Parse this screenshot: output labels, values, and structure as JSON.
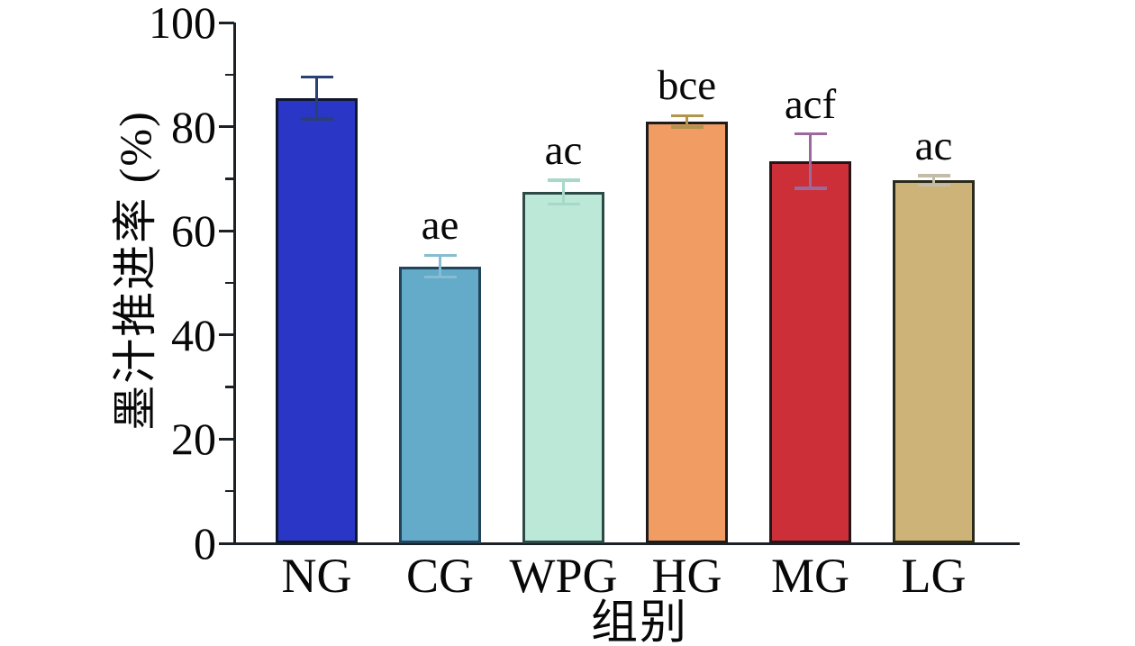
{
  "figure": {
    "background": "#ffffff",
    "axis_color": "#1c2126"
  },
  "chart_data": {
    "type": "bar",
    "title": "",
    "xlabel": "组别",
    "ylabel": "墨汁推进率 (%)",
    "ylim": [
      0,
      100
    ],
    "yticks_major": [
      0,
      20,
      40,
      60,
      80,
      100
    ],
    "yticks_minor": [
      10,
      30,
      50,
      70,
      90
    ],
    "grid": false,
    "legend": null,
    "categories": [
      "NG",
      "CG",
      "WPG",
      "HG",
      "MG",
      "LG"
    ],
    "values": [
      85.5,
      53.2,
      67.4,
      81.0,
      73.4,
      69.7
    ],
    "errors": [
      4.0,
      2.1,
      2.3,
      1.1,
      5.2,
      0.9
    ],
    "sig_labels": [
      "",
      "ae",
      "ac",
      "bce",
      "acf",
      "ac"
    ],
    "bar_colors": [
      "#2936c6",
      "#64aac9",
      "#bce8d8",
      "#f09c62",
      "#cd2f38",
      "#cdb377"
    ],
    "bar_edge_colors": [
      "#10182c",
      "#23455c",
      "#2e4a46",
      "#1c1c1c",
      "#26161a",
      "#2a2a1c"
    ],
    "error_colors": [
      "#2b3f77",
      "#86bdd2",
      "#a8d8c8",
      "#b2944d",
      "#9b6a9b",
      "#c3bda8"
    ]
  }
}
